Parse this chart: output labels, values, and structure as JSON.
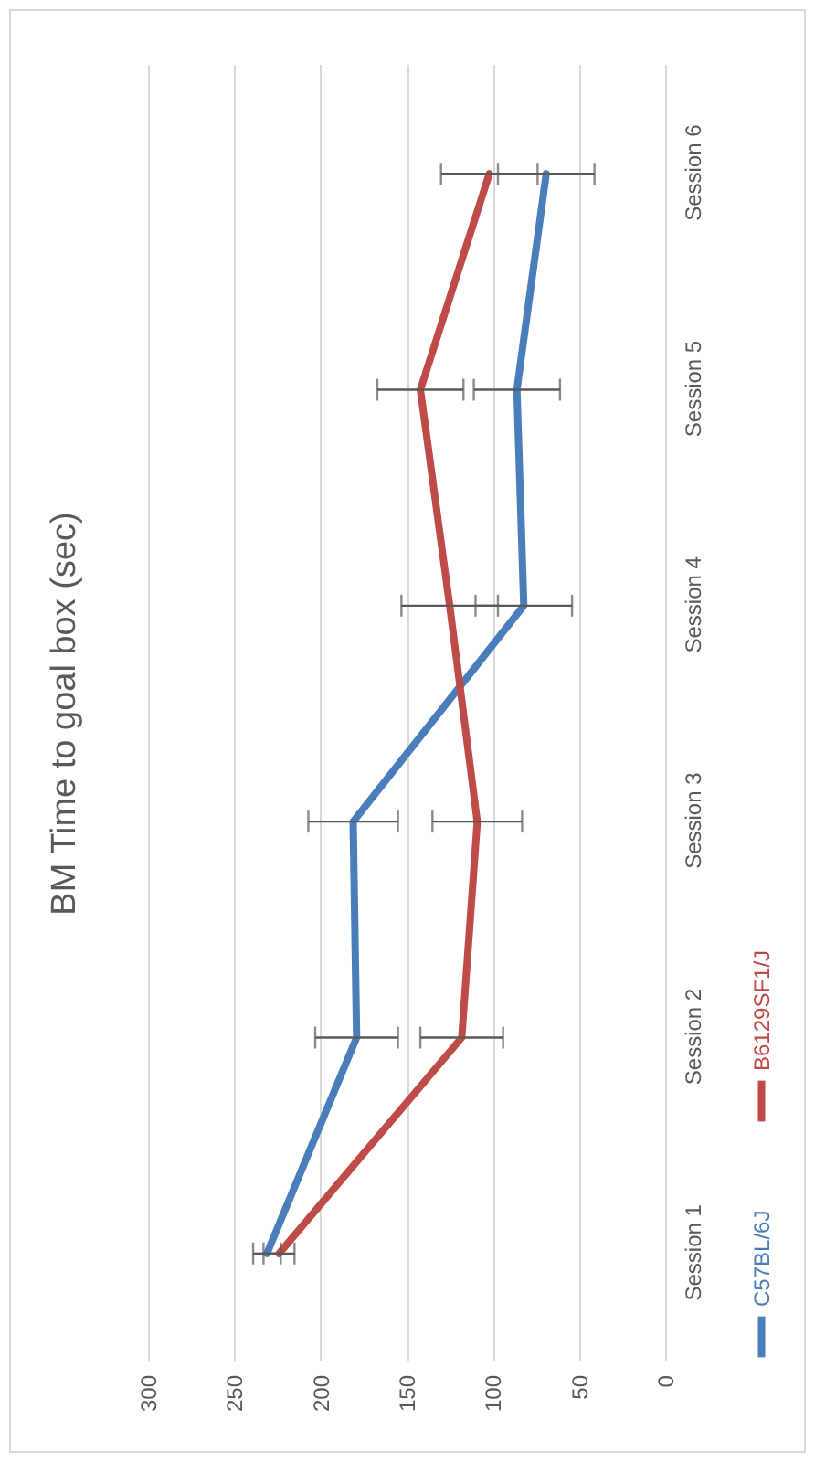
{
  "chart_data": {
    "type": "line",
    "orientation": "horizontal",
    "title": "BM Time to goal box (sec)",
    "categories": [
      "Session 6",
      "Session 5",
      "Session 4",
      "Session 3",
      "Session 2",
      "Session 1"
    ],
    "series": [
      {
        "name": "C57BL/6J",
        "color": "#4a7ebb",
        "values": [
          69,
          86,
          82,
          181,
          179,
          231
        ],
        "errors": [
          28,
          25,
          28,
          26,
          24,
          8
        ]
      },
      {
        "name": "B6129SF1/J",
        "color": "#be4b48",
        "values": [
          102,
          142,
          125,
          109,
          118,
          224
        ],
        "errors": [
          28,
          25,
          28,
          26,
          24,
          9
        ]
      }
    ],
    "xlim": [
      300,
      0
    ],
    "xticks": [
      300,
      250,
      200,
      150,
      100,
      50,
      0
    ],
    "grid": "x",
    "legend": "right",
    "marker": "none",
    "line_style": "solid"
  }
}
